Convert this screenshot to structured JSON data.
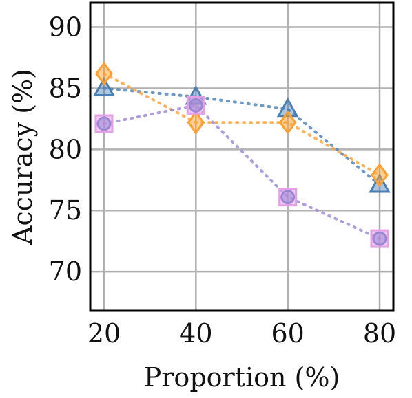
{
  "chart_data": {
    "type": "line",
    "xlabel": "Proportion (%)",
    "ylabel": "Accuracy (%)",
    "x": [
      20,
      40,
      60,
      80
    ],
    "x_ticks": [
      "20",
      "40",
      "60",
      "80"
    ],
    "y_ticks": [
      "70",
      "75",
      "80",
      "85",
      "90"
    ],
    "xlim": [
      17,
      83
    ],
    "ylim": [
      66.8,
      92
    ],
    "grid": true,
    "series": [
      {
        "values": [
          85.0,
          84.3,
          83.3,
          77.1
        ],
        "color": "#4a7fb3",
        "marker": "triangle"
      },
      {
        "values": [
          86.2,
          82.2,
          82.2,
          77.9
        ],
        "color": "#ff9f2e",
        "marker": "diamond"
      },
      {
        "values": [
          82.1,
          83.6,
          76.1,
          72.7
        ],
        "color": "#9b86d6",
        "marker": "circle-square"
      }
    ]
  }
}
